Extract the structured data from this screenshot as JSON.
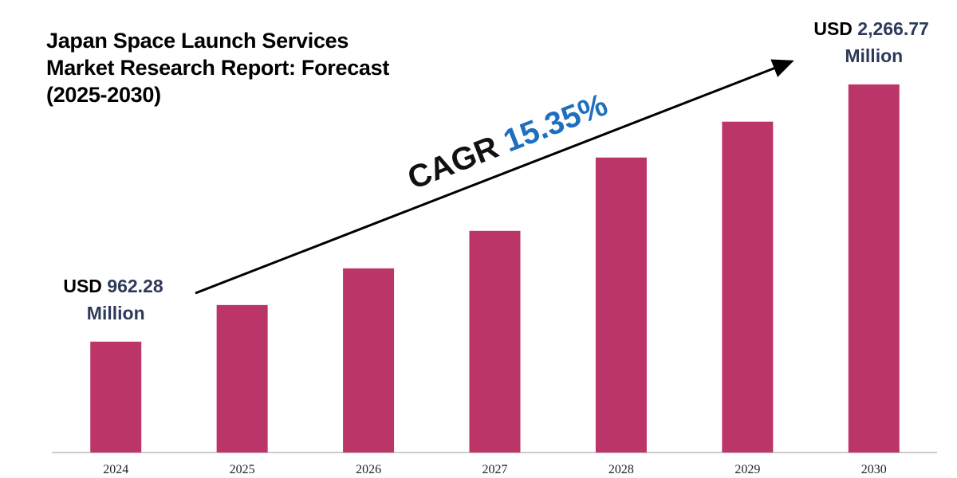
{
  "chart_data": {
    "type": "bar",
    "title": "Japan Space Launch Services Market Research Report: Forecast (2025-2030)",
    "categories": [
      "2024",
      "2025",
      "2026",
      "2027",
      "2028",
      "2029",
      "2030"
    ],
    "values": [
      962.28,
      1148,
      1334,
      1524,
      1896,
      2078,
      2266.77
    ],
    "value_labels": [
      "USD 962.28 Million",
      null,
      null,
      null,
      null,
      null,
      "USD 2,266.77 Million"
    ],
    "color": "#bc3569",
    "ylim": [
      400,
      2400
    ],
    "annotation": {
      "label": "CAGR",
      "value": "15.35%"
    }
  }
}
